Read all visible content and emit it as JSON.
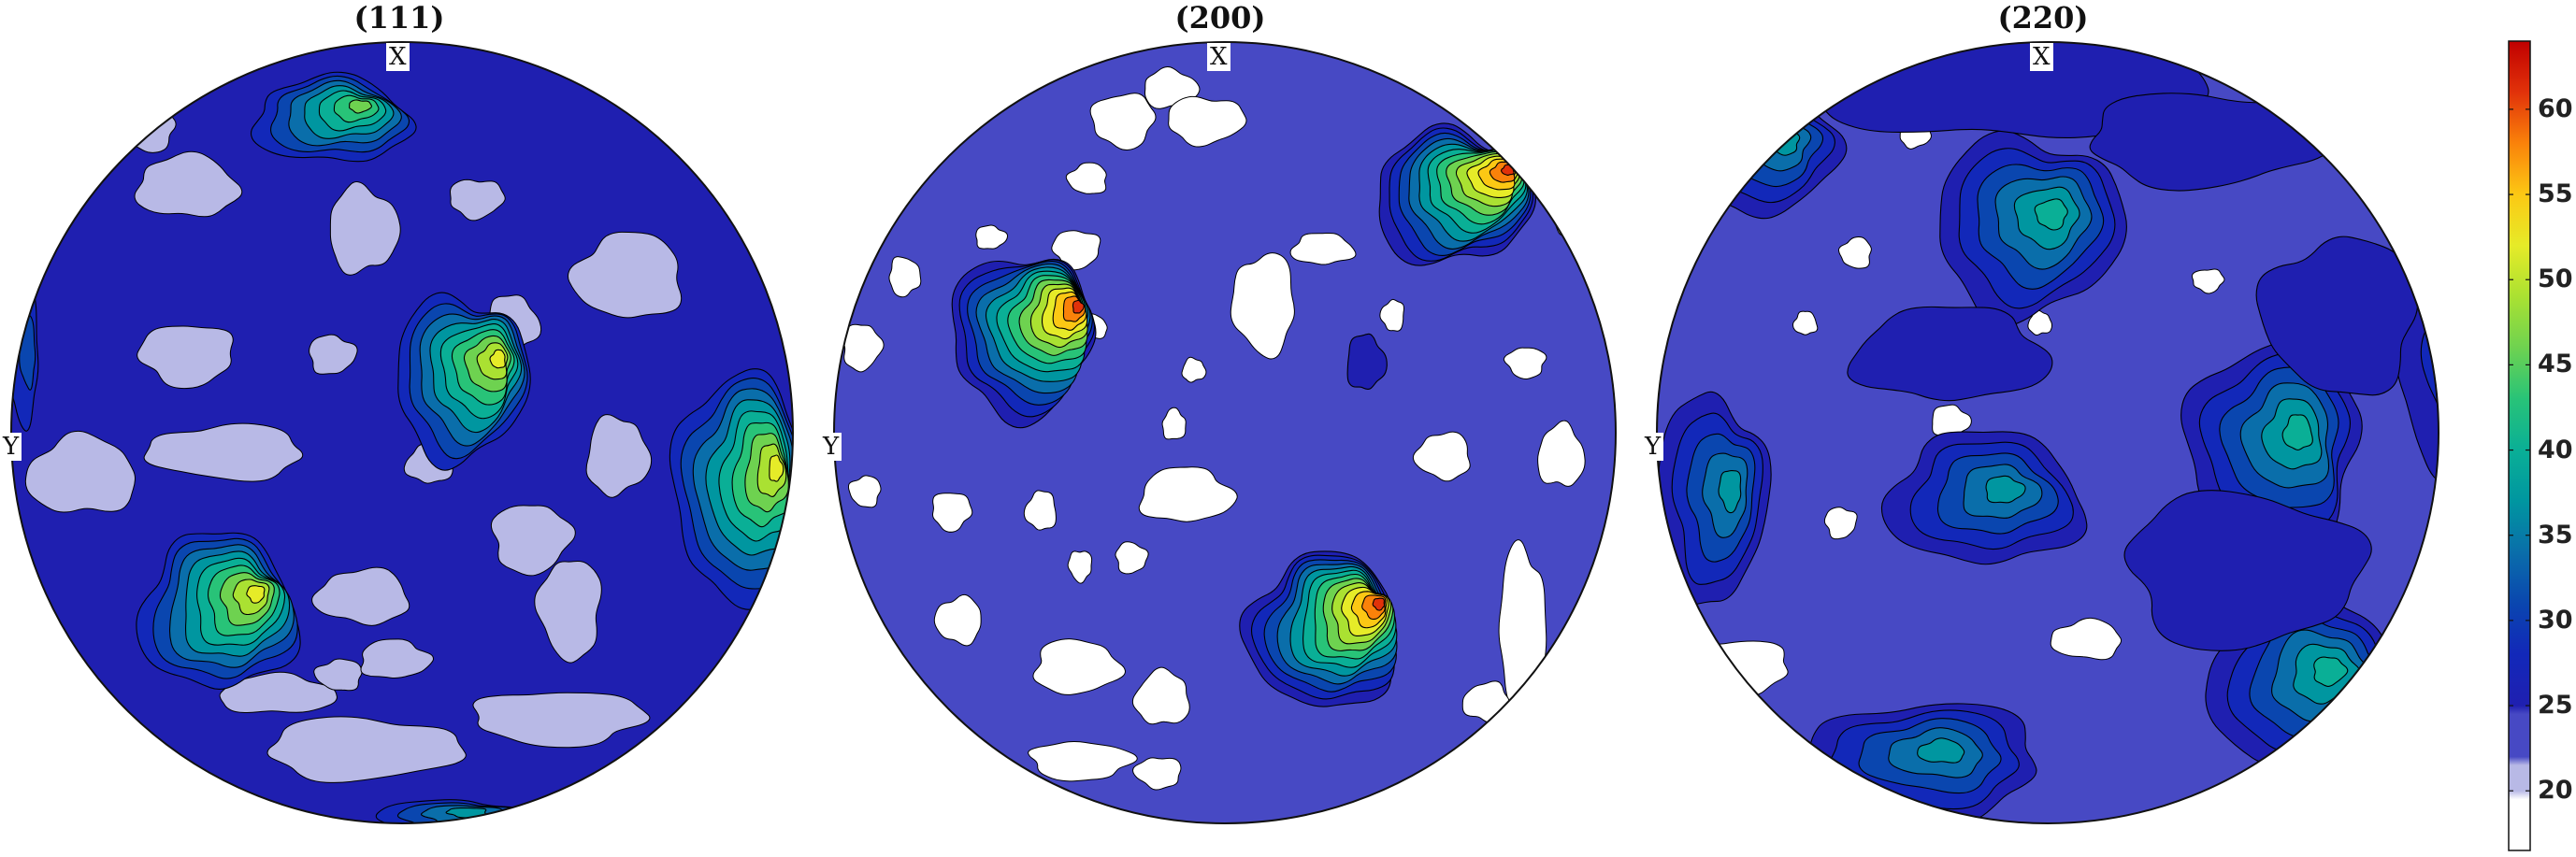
{
  "chart_data": [
    {
      "type": "heatmap",
      "title": "(111)",
      "axis_labels": {
        "top": "X",
        "left": "Y"
      },
      "background_level": 25,
      "low_regions": [
        [
          -0.55,
          -0.63,
          0.13,
          0.08
        ],
        [
          -0.1,
          -0.52,
          0.09,
          0.11
        ],
        [
          0.19,
          -0.6,
          0.07,
          0.05
        ],
        [
          -0.65,
          -0.78,
          0.07,
          0.06
        ],
        [
          0.58,
          -0.4,
          0.14,
          0.11
        ],
        [
          0.28,
          -0.28,
          0.07,
          0.07
        ],
        [
          -0.18,
          -0.2,
          0.06,
          0.05
        ],
        [
          -0.55,
          -0.2,
          0.12,
          0.08
        ],
        [
          -0.45,
          0.05,
          0.2,
          0.07
        ],
        [
          -0.82,
          0.11,
          0.14,
          0.1
        ],
        [
          0.55,
          0.06,
          0.08,
          0.1
        ],
        [
          0.33,
          0.27,
          0.1,
          0.09
        ],
        [
          0.43,
          0.45,
          0.08,
          0.13
        ],
        [
          -0.1,
          0.42,
          0.12,
          0.07
        ],
        [
          -0.32,
          0.67,
          0.15,
          0.05
        ],
        [
          -0.1,
          0.81,
          0.25,
          0.08
        ],
        [
          0.4,
          0.73,
          0.22,
          0.07
        ],
        [
          -0.16,
          0.62,
          0.06,
          0.04
        ],
        [
          0.07,
          0.08,
          0.06,
          0.05
        ],
        [
          -0.02,
          0.58,
          0.09,
          0.05
        ]
      ],
      "peaks": [
        {
          "x": -0.18,
          "y": -0.8,
          "rx": 0.2,
          "ry": 0.11,
          "max": 47
        },
        {
          "x": 0.15,
          "y": -0.14,
          "rx": 0.17,
          "ry": 0.21,
          "max": 51
        },
        {
          "x": 0.86,
          "y": 0.14,
          "rx": 0.16,
          "ry": 0.3,
          "max": 51
        },
        {
          "x": -0.47,
          "y": 0.46,
          "rx": 0.2,
          "ry": 0.2,
          "max": 52
        },
        {
          "x": 0.13,
          "y": 0.99,
          "rx": 0.2,
          "ry": 0.05,
          "max": 37
        },
        {
          "x": -0.97,
          "y": -0.2,
          "rx": 0.04,
          "ry": 0.18,
          "max": 30
        }
      ]
    },
    {
      "type": "heatmap",
      "title": "(200)",
      "axis_labels": {
        "top": "X",
        "left": "Y"
      },
      "background_level": 22,
      "low_regions": [
        [
          -0.14,
          -0.88,
          0.07,
          0.05
        ],
        [
          -0.05,
          -0.8,
          0.1,
          0.06
        ],
        [
          -0.26,
          -0.8,
          0.08,
          0.07
        ],
        [
          -0.35,
          -0.65,
          0.05,
          0.04
        ],
        [
          0.25,
          -0.47,
          0.08,
          0.04
        ],
        [
          -0.6,
          -0.5,
          0.04,
          0.03
        ],
        [
          -0.38,
          -0.47,
          0.06,
          0.05
        ],
        [
          0.1,
          -0.33,
          0.08,
          0.13
        ],
        [
          -0.34,
          -0.27,
          0.04,
          0.03
        ],
        [
          -0.08,
          -0.16,
          0.03,
          0.03
        ],
        [
          -0.93,
          -0.22,
          0.05,
          0.06
        ],
        [
          0.77,
          -0.18,
          0.05,
          0.04
        ],
        [
          0.56,
          0.06,
          0.07,
          0.06
        ],
        [
          0.86,
          0.06,
          0.06,
          0.08
        ],
        [
          0.76,
          0.49,
          0.06,
          0.2
        ],
        [
          -0.7,
          0.2,
          0.05,
          0.05
        ],
        [
          -0.92,
          0.15,
          0.04,
          0.04
        ],
        [
          -0.47,
          0.2,
          0.04,
          0.05
        ],
        [
          -0.1,
          0.16,
          0.12,
          0.07
        ],
        [
          -0.24,
          0.32,
          0.04,
          0.04
        ],
        [
          -0.37,
          0.34,
          0.03,
          0.04
        ],
        [
          -0.68,
          0.48,
          0.06,
          0.06
        ],
        [
          -0.16,
          0.68,
          0.07,
          0.07
        ],
        [
          -0.38,
          0.6,
          0.11,
          0.07
        ],
        [
          -0.37,
          0.84,
          0.13,
          0.05
        ],
        [
          -0.17,
          0.87,
          0.06,
          0.04
        ],
        [
          0.67,
          0.69,
          0.06,
          0.05
        ],
        [
          -0.13,
          -0.02,
          0.03,
          0.04
        ],
        [
          -0.82,
          -0.4,
          0.04,
          0.05
        ],
        [
          0.88,
          -0.55,
          0.04,
          0.05
        ],
        [
          0.43,
          -0.3,
          0.03,
          0.04
        ]
      ],
      "peaks": [
        {
          "x": 0.58,
          "y": -0.6,
          "rx": 0.2,
          "ry": 0.17,
          "max": 62
        },
        {
          "x": -0.52,
          "y": -0.25,
          "rx": 0.18,
          "ry": 0.21,
          "max": 62
        },
        {
          "x": 0.25,
          "y": 0.51,
          "rx": 0.19,
          "ry": 0.2,
          "max": 62
        },
        {
          "x": 0.36,
          "y": -0.18,
          "rx": 0.05,
          "ry": 0.07,
          "max": 26
        }
      ]
    },
    {
      "type": "heatmap",
      "title": "(220)",
      "axis_labels": {
        "top": "X",
        "left": "Y"
      },
      "background_level": 22,
      "low_regions": [
        [
          -0.34,
          -0.76,
          0.04,
          0.03
        ],
        [
          0.41,
          -0.39,
          0.04,
          0.03
        ],
        [
          -0.49,
          -0.46,
          0.04,
          0.04
        ],
        [
          -0.62,
          -0.28,
          0.03,
          0.03
        ],
        [
          -0.25,
          -0.03,
          0.05,
          0.04
        ],
        [
          -0.53,
          0.23,
          0.04,
          0.04
        ],
        [
          -0.8,
          0.6,
          0.14,
          0.07
        ],
        [
          0.1,
          0.53,
          0.09,
          0.05
        ],
        [
          -0.02,
          -0.28,
          0.03,
          0.03
        ]
      ],
      "peaks": [
        {
          "x": -0.05,
          "y": -0.53,
          "rx": 0.24,
          "ry": 0.23,
          "max": 41
        },
        {
          "x": 0.58,
          "y": 0.03,
          "rx": 0.22,
          "ry": 0.27,
          "max": 40
        },
        {
          "x": -0.16,
          "y": 0.17,
          "rx": 0.25,
          "ry": 0.17,
          "max": 37
        },
        {
          "x": -0.86,
          "y": 0.17,
          "rx": 0.14,
          "ry": 0.27,
          "max": 37
        },
        {
          "x": -0.32,
          "y": 0.84,
          "rx": 0.3,
          "ry": 0.15,
          "max": 38
        },
        {
          "x": 0.66,
          "y": 0.64,
          "rx": 0.25,
          "ry": 0.22,
          "max": 40
        },
        {
          "x": -0.72,
          "y": -0.72,
          "rx": 0.18,
          "ry": 0.16,
          "max": 36
        },
        {
          "x": 1.0,
          "y": -0.2,
          "rx": 0.1,
          "ry": 0.3,
          "max": 28
        },
        {
          "x": -0.1,
          "y": -0.9,
          "rx": 0.5,
          "ry": 0.15,
          "max": 26
        },
        {
          "x": 0.4,
          "y": -0.75,
          "rx": 0.3,
          "ry": 0.12,
          "max": 26
        },
        {
          "x": 0.75,
          "y": -0.3,
          "rx": 0.2,
          "ry": 0.2,
          "max": 26
        },
        {
          "x": -0.25,
          "y": -0.2,
          "rx": 0.25,
          "ry": 0.12,
          "max": 25
        },
        {
          "x": 0.5,
          "y": 0.35,
          "rx": 0.3,
          "ry": 0.2,
          "max": 26
        }
      ]
    }
  ],
  "colorbar": {
    "ticks": [
      "20",
      "25",
      "30",
      "35",
      "40",
      "45",
      "50",
      "55",
      "60"
    ],
    "tick_values": [
      20,
      25,
      30,
      35,
      40,
      45,
      50,
      55,
      60
    ],
    "range": [
      16.5,
      64
    ],
    "colors": {
      "low": "#ffffff",
      "lavender": "#b8b9e6",
      "background_blue": "#4749c4",
      "dark_blue": "#1f1fb0",
      "contour_line": "#000000",
      "high": "#c00000"
    }
  }
}
